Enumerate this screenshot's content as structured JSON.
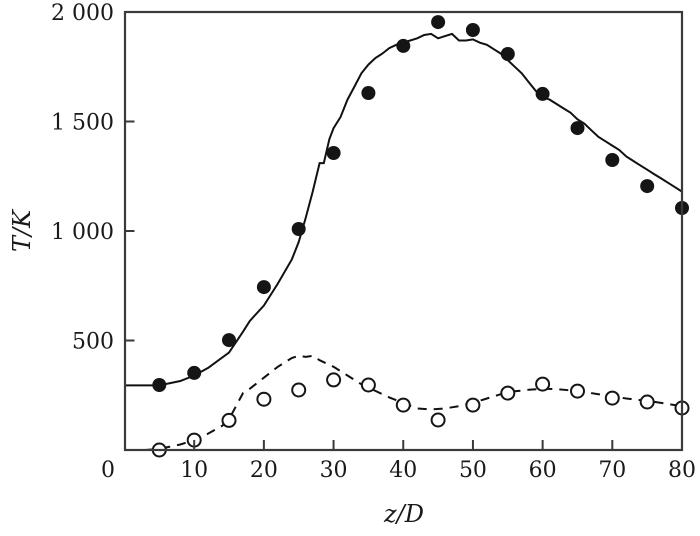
{
  "chart_data": {
    "type": "line",
    "title": "",
    "xlabel": "z/D",
    "ylabel": "T/K",
    "xlim": [
      0,
      80
    ],
    "ylim": [
      0,
      2000
    ],
    "grid": false,
    "legend": null,
    "x_ticks": [
      0,
      10,
      20,
      30,
      40,
      50,
      60,
      70,
      80
    ],
    "x_tick_labels": [
      "0",
      "10",
      "20",
      "30",
      "40",
      "50",
      "60",
      "70",
      "80"
    ],
    "y_ticks": [
      500,
      1000,
      1500,
      2000
    ],
    "y_tick_labels": [
      "500",
      "1 000",
      "1 500",
      "2 000"
    ],
    "series": [
      {
        "name": "filled-circles (measured, upper)",
        "style": "marker-filled",
        "x": [
          5,
          10,
          15,
          20,
          25,
          30,
          35,
          40,
          45,
          50,
          55,
          60,
          65,
          70,
          75,
          80
        ],
        "values": [
          297,
          352,
          502,
          744,
          1009,
          1356,
          1630,
          1845,
          1954,
          1918,
          1808,
          1626,
          1470,
          1324,
          1205,
          1105
        ]
      },
      {
        "name": "solid-line (computed, upper)",
        "style": "line-solid",
        "x": [
          0,
          5,
          8,
          10,
          12,
          15,
          17,
          18,
          20,
          22,
          24,
          25,
          26,
          27,
          28,
          28.6,
          29.4,
          30,
          31,
          32,
          33,
          34,
          35,
          36,
          37,
          38,
          39,
          40,
          41,
          42,
          43,
          44,
          45,
          46,
          47,
          48,
          49,
          50,
          51,
          52,
          53,
          54,
          55,
          56,
          57,
          58,
          59,
          60,
          61,
          62,
          63,
          64,
          65,
          66,
          67,
          68,
          69,
          70,
          71,
          72,
          73,
          74,
          75,
          76,
          77,
          78,
          79,
          80
        ],
        "values": [
          295,
          295,
          315,
          340,
          375,
          445,
          540,
          590,
          660,
          760,
          870,
          950,
          1060,
          1180,
          1310,
          1310,
          1420,
          1470,
          1520,
          1600,
          1660,
          1720,
          1760,
          1790,
          1810,
          1835,
          1850,
          1860,
          1870,
          1880,
          1895,
          1900,
          1880,
          1890,
          1900,
          1870,
          1870,
          1875,
          1860,
          1850,
          1830,
          1810,
          1780,
          1750,
          1720,
          1680,
          1640,
          1610,
          1600,
          1580,
          1560,
          1540,
          1510,
          1490,
          1460,
          1430,
          1410,
          1390,
          1370,
          1340,
          1320,
          1300,
          1280,
          1260,
          1240,
          1220,
          1200,
          1180
        ]
      },
      {
        "name": "open-circles (measured, lower)",
        "style": "marker-open",
        "x": [
          5,
          10,
          15,
          20,
          25,
          30,
          35,
          40,
          45,
          50,
          55,
          60,
          65,
          70,
          75,
          80
        ],
        "values": [
          0,
          45,
          135,
          232,
          274,
          320,
          297,
          205,
          137,
          205,
          260,
          301,
          269,
          237,
          219,
          192
        ]
      },
      {
        "name": "dashed-line (computed, lower)",
        "style": "line-dashed",
        "x": [
          3,
          5,
          8,
          10,
          12,
          14,
          15,
          16,
          17,
          18,
          20,
          22,
          24,
          25,
          26,
          27,
          28,
          30,
          32,
          34,
          36,
          38,
          40,
          42,
          44,
          46,
          48,
          50,
          52,
          54,
          56,
          58,
          60,
          62,
          64,
          66,
          68,
          70,
          72,
          74,
          76,
          78,
          80
        ],
        "values": [
          0,
          5,
          25,
          45,
          75,
          110,
          140,
          200,
          260,
          280,
          330,
          380,
          420,
          430,
          425,
          430,
          410,
          380,
          340,
          300,
          270,
          240,
          215,
          190,
          185,
          190,
          200,
          215,
          235,
          255,
          268,
          275,
          280,
          278,
          272,
          265,
          255,
          245,
          235,
          228,
          220,
          210,
          200
        ]
      }
    ]
  }
}
